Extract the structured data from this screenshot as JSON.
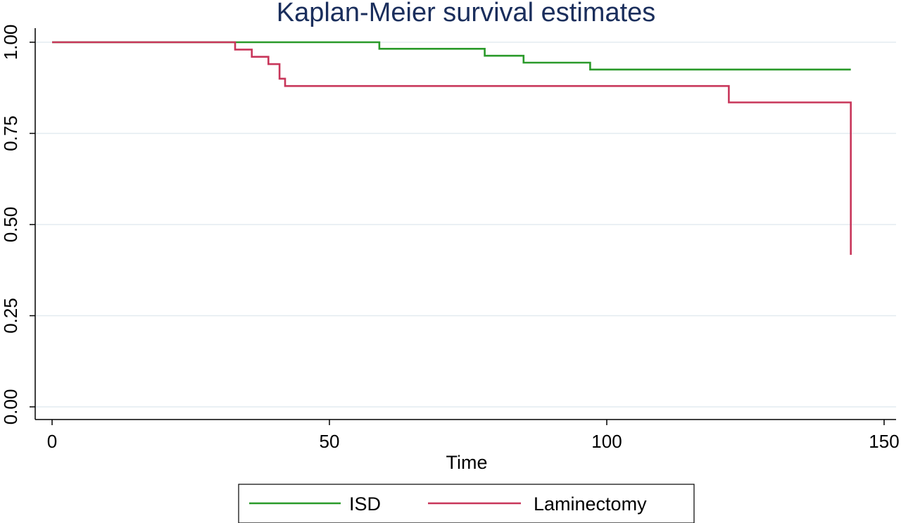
{
  "chart_data": {
    "type": "line",
    "title": "Kaplan-Meier survival estimates",
    "xlabel": "Time",
    "ylabel": "",
    "xlim": [
      0,
      150
    ],
    "ylim": [
      0,
      1
    ],
    "x_ticks": [
      "0",
      "50",
      "100",
      "150"
    ],
    "y_ticks": [
      "0.00",
      "0.25",
      "0.50",
      "0.75",
      "1.00"
    ],
    "grid": "horizontal",
    "legend_position": "bottom",
    "step": true,
    "series": [
      {
        "name": "ISD",
        "color": "#2a9a2a",
        "points": [
          [
            0,
            1.0
          ],
          [
            59,
            1.0
          ],
          [
            59,
            0.982
          ],
          [
            78,
            0.982
          ],
          [
            78,
            0.963
          ],
          [
            85,
            0.963
          ],
          [
            85,
            0.944
          ],
          [
            97,
            0.944
          ],
          [
            97,
            0.925
          ],
          [
            144,
            0.925
          ]
        ]
      },
      {
        "name": "Laminectomy",
        "color": "#c8365a",
        "points": [
          [
            0,
            1.0
          ],
          [
            33,
            1.0
          ],
          [
            33,
            0.98
          ],
          [
            36,
            0.98
          ],
          [
            36,
            0.96
          ],
          [
            39,
            0.96
          ],
          [
            39,
            0.94
          ],
          [
            41,
            0.94
          ],
          [
            41,
            0.9
          ],
          [
            42,
            0.9
          ],
          [
            42,
            0.88
          ],
          [
            122,
            0.88
          ],
          [
            122,
            0.835
          ],
          [
            144,
            0.835
          ],
          [
            144,
            0.417
          ]
        ]
      }
    ]
  }
}
